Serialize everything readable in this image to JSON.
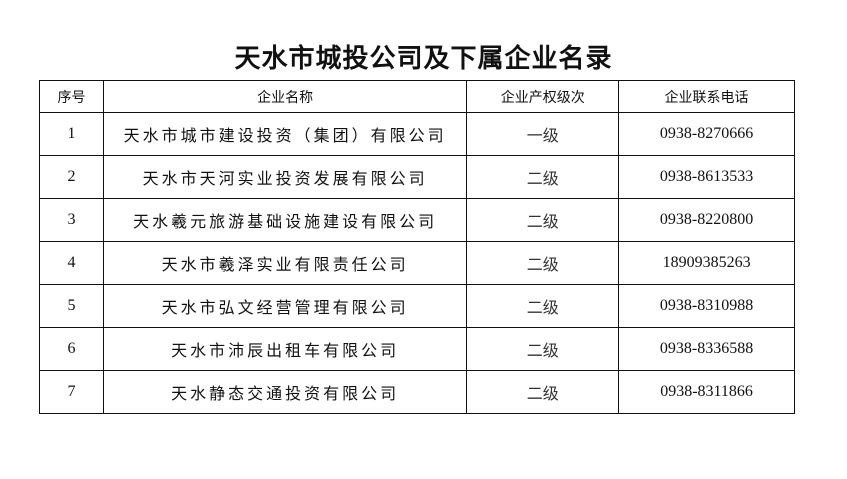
{
  "title": "天水市城投公司及下属企业名录",
  "headers": [
    "序号",
    "企业名称",
    "企业产权级次",
    "企业联系电话"
  ],
  "rows": [
    {
      "no": "1",
      "name": "天水市城市建设投资（集团）有限公司",
      "level": "一级",
      "phone": "0938-8270666"
    },
    {
      "no": "2",
      "name": "天水市天河实业投资发展有限公司",
      "level": "二级",
      "phone": "0938-8613533"
    },
    {
      "no": "3",
      "name": "天水羲元旅游基础设施建设有限公司",
      "level": "二级",
      "phone": "0938-8220800"
    },
    {
      "no": "4",
      "name": "天水市羲泽实业有限责任公司",
      "level": "二级",
      "phone": "18909385263"
    },
    {
      "no": "5",
      "name": "天水市弘文经营管理有限公司",
      "level": "二级",
      "phone": "0938-8310988"
    },
    {
      "no": "6",
      "name": "天水市沛辰出租车有限公司",
      "level": "二级",
      "phone": "0938-8336588"
    },
    {
      "no": "7",
      "name": "天水静态交通投资有限公司",
      "level": "二级",
      "phone": "0938-8311866"
    }
  ]
}
